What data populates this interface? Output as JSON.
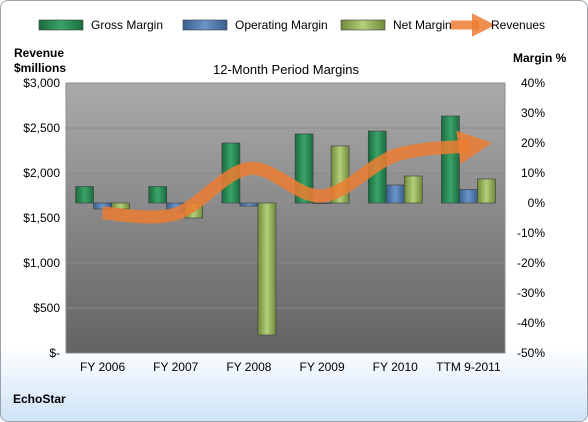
{
  "chart_data": {
    "type": "bar",
    "title": "12-Month Period Margins",
    "company": "EchoStar",
    "left_axis_title": [
      "Revenue",
      "$millions"
    ],
    "right_axis_title": "Margin %",
    "categories": [
      "FY 2006",
      "FY 2007",
      "FY 2008",
      "FY 2009",
      "FY 2010",
      "TTM 9-2011"
    ],
    "left_axis": {
      "min": 0,
      "max": 3000,
      "step": 500,
      "tick_labels": [
        "$-",
        "$500",
        "$1,000",
        "$1,500",
        "$2,000",
        "$2,500",
        "$3,000"
      ]
    },
    "right_axis": {
      "min": -50,
      "max": 40,
      "step": 10,
      "tick_labels": [
        "-50%",
        "-40%",
        "-30%",
        "-20%",
        "-10%",
        "0%",
        "10%",
        "20%",
        "30%",
        "40%"
      ]
    },
    "series": [
      {
        "name": "Gross Margin",
        "axis": "right",
        "kind": "bar",
        "color": "#2e8b57",
        "values": [
          5.5,
          5.5,
          20,
          23,
          24,
          29
        ]
      },
      {
        "name": "Operating Margin",
        "axis": "right",
        "kind": "bar",
        "color": "#4f81bd",
        "values": [
          -2,
          -3,
          -1,
          0,
          6,
          4.5
        ]
      },
      {
        "name": "Net Margin",
        "axis": "right",
        "kind": "bar",
        "color": "#9bbb59",
        "values": [
          -2,
          -5,
          -44,
          19,
          9,
          8
        ]
      },
      {
        "name": "Revenues",
        "axis": "left",
        "kind": "line",
        "color": "#ed7d31",
        "values": [
          1555,
          1545,
          2050,
          1745,
          2195,
          2300
        ]
      }
    ],
    "legend_position": "top",
    "grid": true
  }
}
